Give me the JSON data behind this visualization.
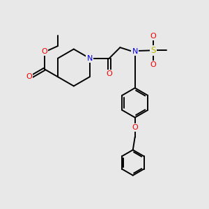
{
  "bg_color": "#e8e8e8",
  "bond_color": "#000000",
  "N_color": "#0000ee",
  "O_color": "#ee0000",
  "S_color": "#bbbb00",
  "lw": 1.4,
  "dbl_off": 0.055,
  "fig_w": 3.0,
  "fig_h": 3.0,
  "dpi": 100,
  "xlim": [
    0,
    10
  ],
  "ylim": [
    0,
    10
  ]
}
